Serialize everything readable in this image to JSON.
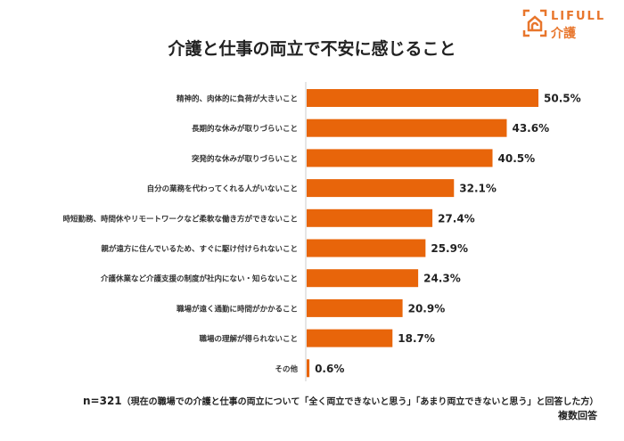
{
  "logo": {
    "brand": "LIFULL",
    "sub": "介護"
  },
  "chart_data": {
    "type": "bar",
    "orientation": "horizontal",
    "title": "介護と仕事の両立で不安に感じること",
    "categories": [
      "精神的、肉体的に負荷が大きいこと",
      "長期的な休みが取りづらいこと",
      "突発的な休みが取りづらいこと",
      "自分の業務を代わってくれる人がいないこと",
      "時短勤務、時間休やリモートワークなど柔軟な働き方ができないこと",
      "親が遠方に住んでいるため、すぐに駆け付けられないこと",
      "介護休業など介護支援の制度が社内にない・知らないこと",
      "職場が遠く通勤に時間がかかること",
      "職場の理解が得られないこと",
      "その他"
    ],
    "values": [
      50.5,
      43.6,
      40.5,
      32.1,
      27.4,
      25.9,
      24.3,
      20.9,
      18.7,
      0.6
    ],
    "labels": [
      "50.5%",
      "43.6%",
      "40.5%",
      "32.1%",
      "27.4%",
      "25.9%",
      "24.3%",
      "20.9%",
      "18.7%",
      "0.6%"
    ],
    "unit": "%",
    "xlim": [
      0,
      50.5
    ],
    "bar_color": "#e8650a",
    "grid": false
  },
  "footer": {
    "n": "n=321",
    "note": "（現在の職場での介護と仕事の両立について「全く両立できないと思う」「あまり両立できないと思う」と回答した方）",
    "multiple": "複数回答"
  }
}
